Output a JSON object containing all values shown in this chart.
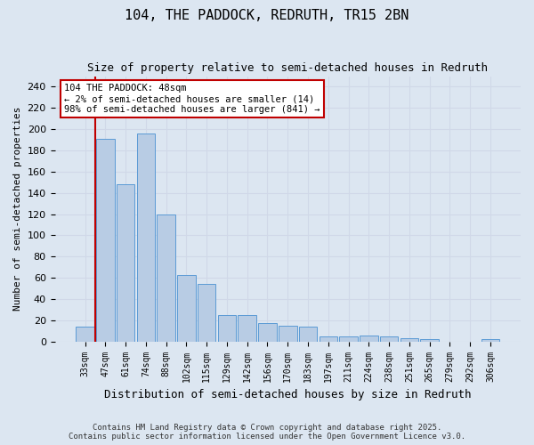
{
  "title1": "104, THE PADDOCK, REDRUTH, TR15 2BN",
  "title2": "Size of property relative to semi-detached houses in Redruth",
  "xlabel": "Distribution of semi-detached houses by size in Redruth",
  "ylabel": "Number of semi-detached properties",
  "categories": [
    "33sqm",
    "47sqm",
    "61sqm",
    "74sqm",
    "88sqm",
    "102sqm",
    "115sqm",
    "129sqm",
    "142sqm",
    "156sqm",
    "170sqm",
    "183sqm",
    "197sqm",
    "211sqm",
    "224sqm",
    "238sqm",
    "251sqm",
    "265sqm",
    "279sqm",
    "292sqm",
    "306sqm"
  ],
  "values": [
    14,
    191,
    148,
    196,
    120,
    63,
    54,
    25,
    25,
    17,
    15,
    14,
    5,
    5,
    6,
    5,
    3,
    2,
    0,
    0,
    2
  ],
  "bar_color": "#b8cce4",
  "bar_edge_color": "#5b9bd5",
  "grid_color": "#d0d8e8",
  "background_color": "#dce6f1",
  "annotation_text": "104 THE PADDOCK: 48sqm\n← 2% of semi-detached houses are smaller (14)\n98% of semi-detached houses are larger (841) →",
  "vline_color": "#c00000",
  "ylim": [
    0,
    250
  ],
  "yticks": [
    0,
    20,
    40,
    60,
    80,
    100,
    120,
    140,
    160,
    180,
    200,
    220,
    240
  ],
  "footnote": "Contains HM Land Registry data © Crown copyright and database right 2025.\nContains public sector information licensed under the Open Government Licence v3.0.",
  "annotation_box_color": "#ffffff",
  "annotation_box_edge": "#c00000"
}
